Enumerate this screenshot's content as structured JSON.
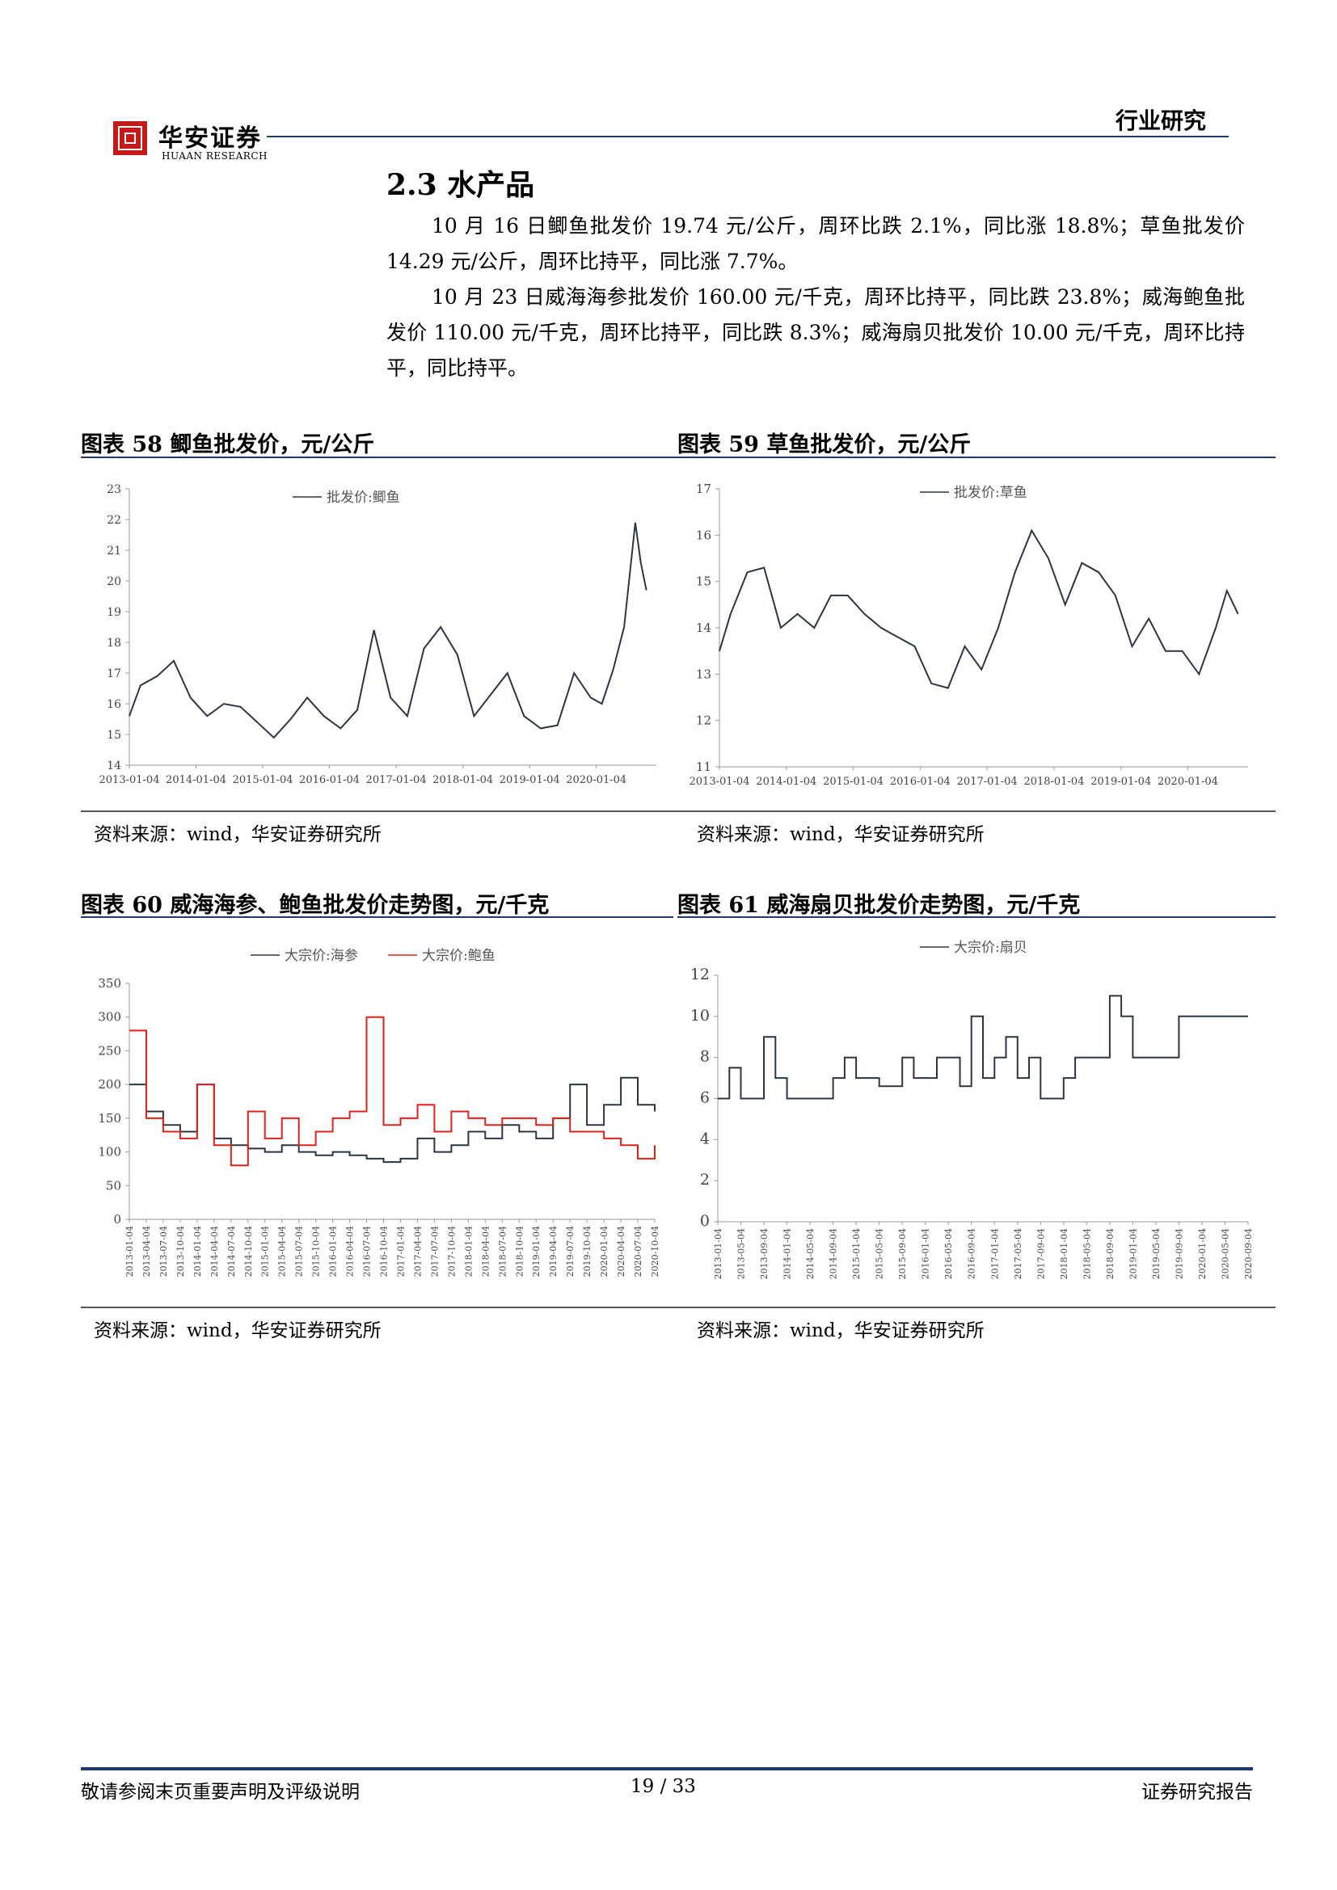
{
  "header": {
    "logo_cn": "华安证券",
    "logo_en": "HUAAN RESEARCH",
    "section_label": "行业研究"
  },
  "section": {
    "title": "2.3 水产品",
    "paragraphs": [
      "10 月 16 日鲫鱼批发价 19.74 元/公斤，周环比跌 2.1%，同比涨 18.8%；草鱼批发价 14.29 元/公斤，周环比持平，同比涨 7.7%。",
      "10 月 23 日威海海参批发价 160.00 元/千克，周环比持平，同比跌 23.8%；威海鲍鱼批发价 110.00 元/千克，周环比持平，同比跌 8.3%；威海扇贝批发价 10.00 元/千克，周环比持平，同比持平。"
    ]
  },
  "figures": [
    {
      "title": "图表 58 鲫鱼批发价，元/公斤",
      "source": "资料来源：wind，华安证券研究所"
    },
    {
      "title": "图表 59 草鱼批发价，元/公斤",
      "source": "资料来源：wind，华安证券研究所"
    },
    {
      "title": "图表 60 威海海参、鲍鱼批发价走势图，元/千克",
      "source": "资料来源：wind，华安证券研究所"
    },
    {
      "title": "图表 61 威海扇贝批发价走势图，元/千克",
      "source": "资料来源：wind，华安证券研究所"
    }
  ],
  "footer": {
    "left": "敬请参阅末页重要声明及评级说明",
    "page": "19 / 33",
    "right": "证券研究报告"
  },
  "colors": {
    "navy": "#1f3a6e",
    "line": "#2b3544",
    "red": "#e0201b",
    "brand_red": "#c41a1a"
  },
  "chart_data": [
    {
      "type": "line",
      "title": "",
      "series": [
        {
          "name": "批发价:鲫鱼",
          "color": "#2b3544",
          "x": [
            "2013-01",
            "2013-03",
            "2013-06",
            "2013-09",
            "2013-12",
            "2014-03",
            "2014-06",
            "2014-09",
            "2014-12",
            "2015-03",
            "2015-06",
            "2015-09",
            "2015-12",
            "2016-03",
            "2016-06",
            "2016-09",
            "2016-12",
            "2017-03",
            "2017-06",
            "2017-09",
            "2017-12",
            "2018-03",
            "2018-06",
            "2018-09",
            "2018-12",
            "2019-03",
            "2019-06",
            "2019-09",
            "2019-12",
            "2020-02",
            "2020-04",
            "2020-06",
            "2020-08",
            "2020-09",
            "2020-10"
          ],
          "y": [
            15.6,
            16.6,
            16.9,
            17.4,
            16.2,
            15.6,
            16.0,
            15.9,
            15.4,
            14.9,
            15.5,
            16.2,
            15.6,
            15.2,
            15.8,
            18.4,
            16.2,
            15.6,
            17.8,
            18.5,
            17.6,
            15.6,
            16.3,
            17.0,
            15.6,
            15.2,
            15.3,
            17.0,
            16.2,
            16.0,
            17.1,
            18.5,
            21.9,
            20.6,
            19.7
          ]
        }
      ],
      "xticks": [
        "2013-01-04",
        "2014-01-04",
        "2015-01-04",
        "2016-01-04",
        "2017-01-04",
        "2018-01-04",
        "2019-01-04",
        "2020-01-04"
      ],
      "ylim": [
        14,
        23
      ],
      "yticks": [
        14,
        15,
        16,
        17,
        18,
        19,
        20,
        21,
        22,
        23
      ],
      "legend": "top"
    },
    {
      "type": "line",
      "title": "",
      "series": [
        {
          "name": "批发价:草鱼",
          "color": "#2b3544",
          "x": [
            "2013-01",
            "2013-03",
            "2013-06",
            "2013-09",
            "2013-12",
            "2014-03",
            "2014-06",
            "2014-09",
            "2014-12",
            "2015-03",
            "2015-06",
            "2015-09",
            "2015-12",
            "2016-03",
            "2016-06",
            "2016-09",
            "2016-12",
            "2017-03",
            "2017-06",
            "2017-09",
            "2017-12",
            "2018-03",
            "2018-06",
            "2018-09",
            "2018-12",
            "2019-03",
            "2019-06",
            "2019-09",
            "2019-12",
            "2020-03",
            "2020-06",
            "2020-08",
            "2020-10"
          ],
          "y": [
            13.5,
            14.3,
            15.2,
            15.3,
            14.0,
            14.3,
            14.0,
            14.7,
            14.7,
            14.3,
            14.0,
            13.8,
            13.6,
            12.8,
            12.7,
            13.6,
            13.1,
            14.0,
            15.2,
            16.1,
            15.5,
            14.5,
            15.4,
            15.2,
            14.7,
            13.6,
            14.2,
            13.5,
            13.5,
            13.0,
            14.0,
            14.8,
            14.3
          ]
        }
      ],
      "xticks": [
        "2013-01-04",
        "2014-01-04",
        "2015-01-04",
        "2016-01-04",
        "2017-01-04",
        "2018-01-04",
        "2019-01-04",
        "2020-01-04"
      ],
      "ylim": [
        11,
        17
      ],
      "yticks": [
        11,
        12,
        13,
        14,
        15,
        16,
        17
      ],
      "legend": "top"
    },
    {
      "type": "line",
      "title": "",
      "series": [
        {
          "name": "大宗价:海参",
          "color": "#2b3544",
          "x": [
            0,
            1,
            2,
            3,
            4,
            5,
            6,
            7,
            8,
            9,
            10,
            11,
            12,
            13,
            14,
            15,
            16,
            17,
            18,
            19,
            20,
            21,
            22,
            23,
            24,
            25,
            26,
            27,
            28,
            29,
            30,
            31
          ],
          "y": [
            200,
            160,
            140,
            130,
            200,
            120,
            110,
            105,
            100,
            110,
            100,
            95,
            100,
            95,
            90,
            85,
            90,
            120,
            100,
            110,
            130,
            120,
            140,
            130,
            120,
            150,
            200,
            140,
            170,
            210,
            170,
            160
          ]
        },
        {
          "name": "大宗价:鲍鱼",
          "color": "#e0201b",
          "x": [
            0,
            1,
            2,
            3,
            4,
            5,
            6,
            7,
            8,
            9,
            10,
            11,
            12,
            13,
            14,
            15,
            16,
            17,
            18,
            19,
            20,
            21,
            22,
            23,
            24,
            25,
            26,
            27,
            28,
            29,
            30,
            31
          ],
          "y": [
            280,
            150,
            130,
            120,
            200,
            110,
            80,
            160,
            120,
            150,
            110,
            130,
            150,
            160,
            300,
            140,
            150,
            170,
            130,
            160,
            150,
            140,
            150,
            150,
            140,
            150,
            130,
            130,
            120,
            110,
            90,
            110
          ]
        }
      ],
      "xticks": [
        "2013-01-04",
        "2013-04-04",
        "2013-07-04",
        "2013-10-04",
        "2014-01-04",
        "2014-04-04",
        "2014-07-04",
        "2014-10-04",
        "2015-01-04",
        "2015-04-04",
        "2015-07-04",
        "2015-10-04",
        "2016-01-04",
        "2016-04-04",
        "2016-07-04",
        "2016-10-04",
        "2017-01-04",
        "2017-04-04",
        "2017-07-04",
        "2017-10-04",
        "2018-01-04",
        "2018-04-04",
        "2018-07-04",
        "2018-10-04",
        "2019-01-04",
        "2019-04-04",
        "2019-07-04",
        "2019-10-04",
        "2020-01-04",
        "2020-04-04",
        "2020-07-04",
        "2020-10-04"
      ],
      "ylim": [
        0,
        350
      ],
      "yticks": [
        0,
        50,
        100,
        150,
        200,
        250,
        300,
        350
      ],
      "legend": "top"
    },
    {
      "type": "line",
      "title": "",
      "series": [
        {
          "name": "大宗价:扇贝",
          "color": "#2b3544",
          "x": [
            0,
            0.5,
            1,
            1.5,
            2,
            2.5,
            3,
            3.5,
            4,
            4.5,
            5,
            5.5,
            6,
            6.5,
            7,
            7.5,
            8,
            8.5,
            9,
            9.5,
            10,
            10.5,
            11,
            11.5,
            12,
            12.5,
            13,
            13.5,
            14,
            14.5,
            15,
            15.5,
            16,
            16.5,
            17,
            17.5,
            18,
            18.5,
            19,
            19.5,
            20,
            20.5,
            21,
            21.5,
            22,
            22.5,
            23
          ],
          "y": [
            6,
            7.5,
            6,
            6,
            9,
            7,
            6,
            6,
            6,
            6,
            7,
            8,
            7,
            7,
            6.6,
            6.6,
            8,
            7,
            7,
            8,
            8,
            6.6,
            10,
            7,
            8,
            9,
            7,
            8,
            6,
            6,
            7,
            8,
            8,
            8,
            11,
            10,
            8,
            8,
            8,
            8,
            10,
            10,
            10,
            10,
            10,
            10,
            10
          ]
        }
      ],
      "xticks": [
        "2013-01-04",
        "2013-05-04",
        "2013-09-04",
        "2014-01-04",
        "2014-05-04",
        "2014-09-04",
        "2015-01-04",
        "2015-05-04",
        "2015-09-04",
        "2016-01-04",
        "2016-05-04",
        "2016-09-04",
        "2017-01-04",
        "2017-05-04",
        "2017-09-04",
        "2018-01-04",
        "2018-05-04",
        "2018-09-04",
        "2019-01-04",
        "2019-05-04",
        "2019-09-04",
        "2020-01-04",
        "2020-05-04",
        "2020-09-04"
      ],
      "ylim": [
        0,
        12
      ],
      "yticks": [
        0,
        2,
        4,
        6,
        8,
        10,
        12
      ],
      "legend": "top"
    }
  ]
}
